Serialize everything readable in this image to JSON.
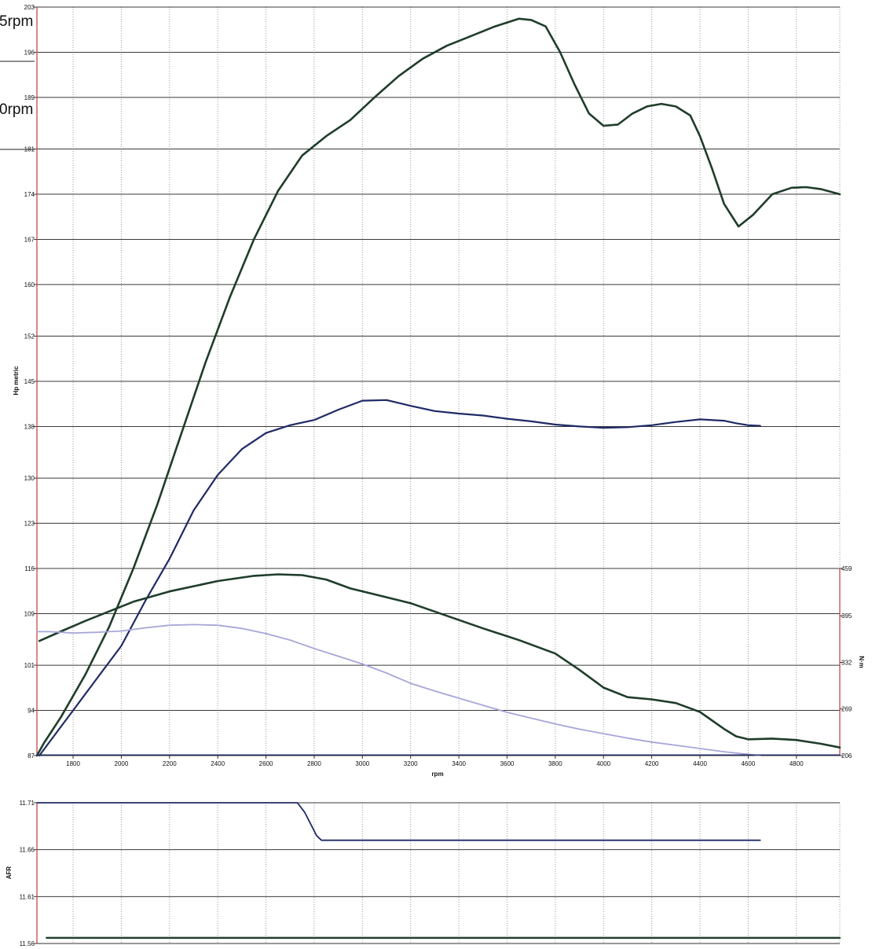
{
  "annotations": [
    "5rpm",
    "0rpm"
  ],
  "chart_data": [
    {
      "type": "line",
      "xlabel": "rpm",
      "ylabel": "Hp metric",
      "y2label": "N·m",
      "x_ticks": [
        1800,
        2000,
        2200,
        2400,
        2600,
        2800,
        3000,
        3200,
        3400,
        3600,
        3800,
        4000,
        4200,
        4400,
        4600,
        4800
      ],
      "xlim": [
        1650,
        4980
      ],
      "y_ticks": [
        87,
        94,
        101,
        109,
        116,
        123,
        130,
        138,
        145,
        152,
        160,
        167,
        174,
        181,
        189,
        196,
        203
      ],
      "ylim": [
        87,
        203
      ],
      "y2_ticks": [
        206,
        269,
        332,
        395,
        459
      ],
      "y2lim": [
        206,
        459
      ],
      "grid": true,
      "series": [
        {
          "axis": "y",
          "color": "#1f3d2a",
          "width": 2.6,
          "points": [
            [
              1650,
              87
            ],
            [
              1680,
              89
            ],
            [
              1750,
              93
            ],
            [
              1850,
              99.5
            ],
            [
              1950,
              107
            ],
            [
              2050,
              116
            ],
            [
              2150,
              126
            ],
            [
              2250,
              137
            ],
            [
              2350,
              148
            ],
            [
              2450,
              158
            ],
            [
              2550,
              167
            ],
            [
              2650,
              174.5
            ],
            [
              2750,
              180
            ],
            [
              2850,
              183
            ],
            [
              2950,
              185.5
            ],
            [
              3050,
              189
            ],
            [
              3150,
              192.3
            ],
            [
              3250,
              195
            ],
            [
              3350,
              197
            ],
            [
              3450,
              198.5
            ],
            [
              3550,
              200
            ],
            [
              3650,
              201.2
            ],
            [
              3700,
              201
            ],
            [
              3760,
              200
            ],
            [
              3820,
              196
            ],
            [
              3880,
              191
            ],
            [
              3940,
              186.5
            ],
            [
              4000,
              184.6
            ],
            [
              4060,
              184.8
            ],
            [
              4120,
              186.5
            ],
            [
              4180,
              187.6
            ],
            [
              4240,
              188
            ],
            [
              4300,
              187.6
            ],
            [
              4360,
              186.2
            ],
            [
              4400,
              183
            ],
            [
              4450,
              178
            ],
            [
              4500,
              172.5
            ],
            [
              4560,
              169
            ],
            [
              4620,
              170.8
            ],
            [
              4700,
              174
            ],
            [
              4780,
              175
            ],
            [
              4840,
              175.1
            ],
            [
              4900,
              174.8
            ],
            [
              4980,
              174
            ]
          ]
        },
        {
          "axis": "y",
          "color": "#1f2a66",
          "width": 2.2,
          "points": [
            [
              1660,
              87
            ],
            [
              1700,
              89
            ],
            [
              1800,
              94
            ],
            [
              1900,
              99
            ],
            [
              2000,
              104
            ],
            [
              2100,
              111
            ],
            [
              2200,
              117.5
            ],
            [
              2300,
              125
            ],
            [
              2400,
              130.5
            ],
            [
              2500,
              134.5
            ],
            [
              2600,
              137
            ],
            [
              2700,
              138.2
            ],
            [
              2800,
              139
            ],
            [
              2900,
              140.6
            ],
            [
              3000,
              142
            ],
            [
              3100,
              142.1
            ],
            [
              3200,
              141.2
            ],
            [
              3300,
              140.4
            ],
            [
              3400,
              140
            ],
            [
              3500,
              139.7
            ],
            [
              3600,
              139.2
            ],
            [
              3700,
              138.8
            ],
            [
              3800,
              138.3
            ],
            [
              3900,
              138
            ],
            [
              4000,
              137.8
            ],
            [
              4100,
              137.9
            ],
            [
              4200,
              138.2
            ],
            [
              4300,
              138.7
            ],
            [
              4400,
              139.1
            ],
            [
              4500,
              138.9
            ],
            [
              4550,
              138.5
            ],
            [
              4600,
              138.2
            ],
            [
              4650,
              138.1
            ]
          ]
        },
        {
          "axis": "y2",
          "color": "#1f3d2a",
          "width": 2.6,
          "points": [
            [
              1660,
              361
            ],
            [
              1750,
              374
            ],
            [
              1850,
              388
            ],
            [
              1950,
              401
            ],
            [
              2050,
              414
            ],
            [
              2200,
              428
            ],
            [
              2400,
              442
            ],
            [
              2550,
              449
            ],
            [
              2650,
              451
            ],
            [
              2750,
              450
            ],
            [
              2850,
              444
            ],
            [
              2950,
              432
            ],
            [
              3050,
              424
            ],
            [
              3200,
              412
            ],
            [
              3350,
              395
            ],
            [
              3500,
              378
            ],
            [
              3650,
              362
            ],
            [
              3800,
              344
            ],
            [
              3900,
              322
            ],
            [
              4000,
              298
            ],
            [
              4100,
              285
            ],
            [
              4200,
              282
            ],
            [
              4300,
              277
            ],
            [
              4400,
              265
            ],
            [
              4500,
              242
            ],
            [
              4550,
              232
            ],
            [
              4600,
              228
            ],
            [
              4700,
              229
            ],
            [
              4800,
              227
            ],
            [
              4900,
              222
            ],
            [
              4980,
              217
            ]
          ]
        },
        {
          "axis": "y",
          "color": "#a7a6d8",
          "width": 1.8,
          "points": [
            [
              1650,
              106.2
            ],
            [
              1700,
              106.2
            ],
            [
              1750,
              106.1
            ],
            [
              1800,
              106.0
            ],
            [
              1900,
              106.1
            ],
            [
              2000,
              106.3
            ],
            [
              2100,
              106.8
            ],
            [
              2200,
              107.2
            ],
            [
              2300,
              107.3
            ],
            [
              2400,
              107.2
            ],
            [
              2500,
              106.7
            ],
            [
              2600,
              105.9
            ],
            [
              2700,
              104.9
            ],
            [
              2800,
              103.6
            ],
            [
              2900,
              102.4
            ],
            [
              3000,
              101.2
            ],
            [
              3100,
              99.8
            ],
            [
              3200,
              98.2
            ],
            [
              3300,
              97.0
            ],
            [
              3400,
              95.9
            ],
            [
              3500,
              94.8
            ],
            [
              3600,
              93.7
            ],
            [
              3700,
              92.8
            ],
            [
              3800,
              91.9
            ],
            [
              3900,
              91.1
            ],
            [
              4000,
              90.4
            ],
            [
              4100,
              89.7
            ],
            [
              4200,
              89.1
            ],
            [
              4300,
              88.6
            ],
            [
              4400,
              88.1
            ],
            [
              4500,
              87.6
            ],
            [
              4600,
              87.2
            ],
            [
              4650,
              87.0
            ]
          ]
        },
        {
          "axis": "y",
          "color": "#1f2a66",
          "width": 1.3,
          "points": [
            [
              1650,
              87.1
            ],
            [
              4980,
              87.1
            ]
          ]
        }
      ]
    },
    {
      "type": "line",
      "ylabel": "AFR",
      "y_ticks": [
        11.56,
        11.61,
        11.66,
        11.71
      ],
      "ylim": [
        11.56,
        11.71
      ],
      "xlim": [
        1650,
        4980
      ],
      "grid": true,
      "series": [
        {
          "color": "#1f2a66",
          "width": 1.8,
          "points": [
            [
              1650,
              11.71
            ],
            [
              2730,
              11.71
            ],
            [
              2760,
              11.7
            ],
            [
              2790,
              11.685
            ],
            [
              2810,
              11.675
            ],
            [
              2830,
              11.67
            ],
            [
              4650,
              11.67
            ]
          ]
        },
        {
          "color": "#1f3d2a",
          "width": 2.4,
          "points": [
            [
              1690,
              11.566
            ],
            [
              4980,
              11.566
            ]
          ]
        }
      ]
    }
  ]
}
